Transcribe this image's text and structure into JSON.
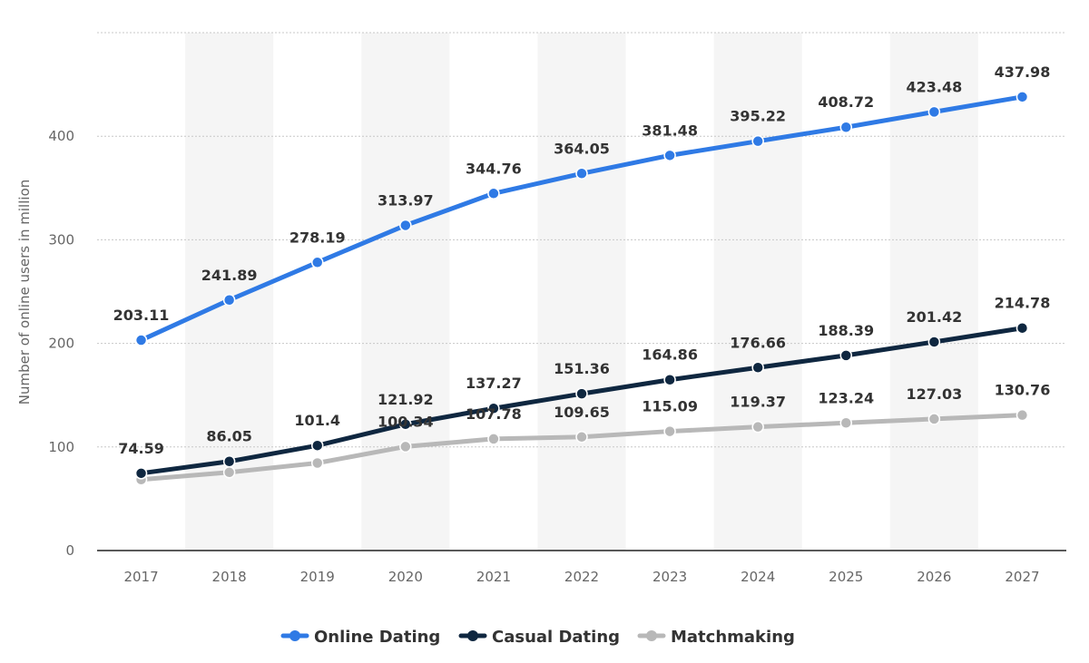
{
  "chart_data": {
    "type": "line",
    "ylabel": "Number of online users in million",
    "xlabel": "",
    "x": [
      "2017",
      "2018",
      "2019",
      "2020",
      "2021",
      "2022",
      "2023",
      "2024",
      "2025",
      "2026",
      "2027"
    ],
    "ylim": [
      0,
      500
    ],
    "yticks": [
      0,
      100,
      200,
      300,
      400
    ],
    "grid": true,
    "legend_position": "bottom",
    "series": [
      {
        "name": "Online Dating",
        "color": "#2f7ae5",
        "values": [
          203.11,
          241.89,
          278.19,
          313.97,
          344.76,
          364.05,
          381.48,
          395.22,
          408.72,
          423.48,
          437.98
        ],
        "labels": [
          "203.11",
          "241.89",
          "278.19",
          "313.97",
          "344.76",
          "364.05",
          "381.48",
          "395.22",
          "408.72",
          "423.48",
          "437.98"
        ]
      },
      {
        "name": "Casual Dating",
        "color": "#0f2740",
        "values": [
          74.59,
          86.05,
          101.4,
          121.92,
          137.27,
          151.36,
          164.86,
          176.66,
          188.39,
          201.42,
          214.78
        ],
        "labels": [
          "74.59",
          "86.05",
          "101.4",
          "121.92",
          "137.27",
          "151.36",
          "164.86",
          "176.66",
          "188.39",
          "201.42",
          "214.78"
        ]
      },
      {
        "name": "Matchmaking",
        "color": "#b8b8b8",
        "values": [
          68.5,
          75.5,
          84.5,
          100.34,
          107.78,
          109.65,
          115.09,
          119.37,
          123.24,
          127.03,
          130.76
        ],
        "labels": [
          "",
          "",
          "",
          "100.34",
          "107.78",
          "109.65",
          "115.09",
          "119.37",
          "123.24",
          "127.03",
          "130.76"
        ]
      }
    ]
  }
}
